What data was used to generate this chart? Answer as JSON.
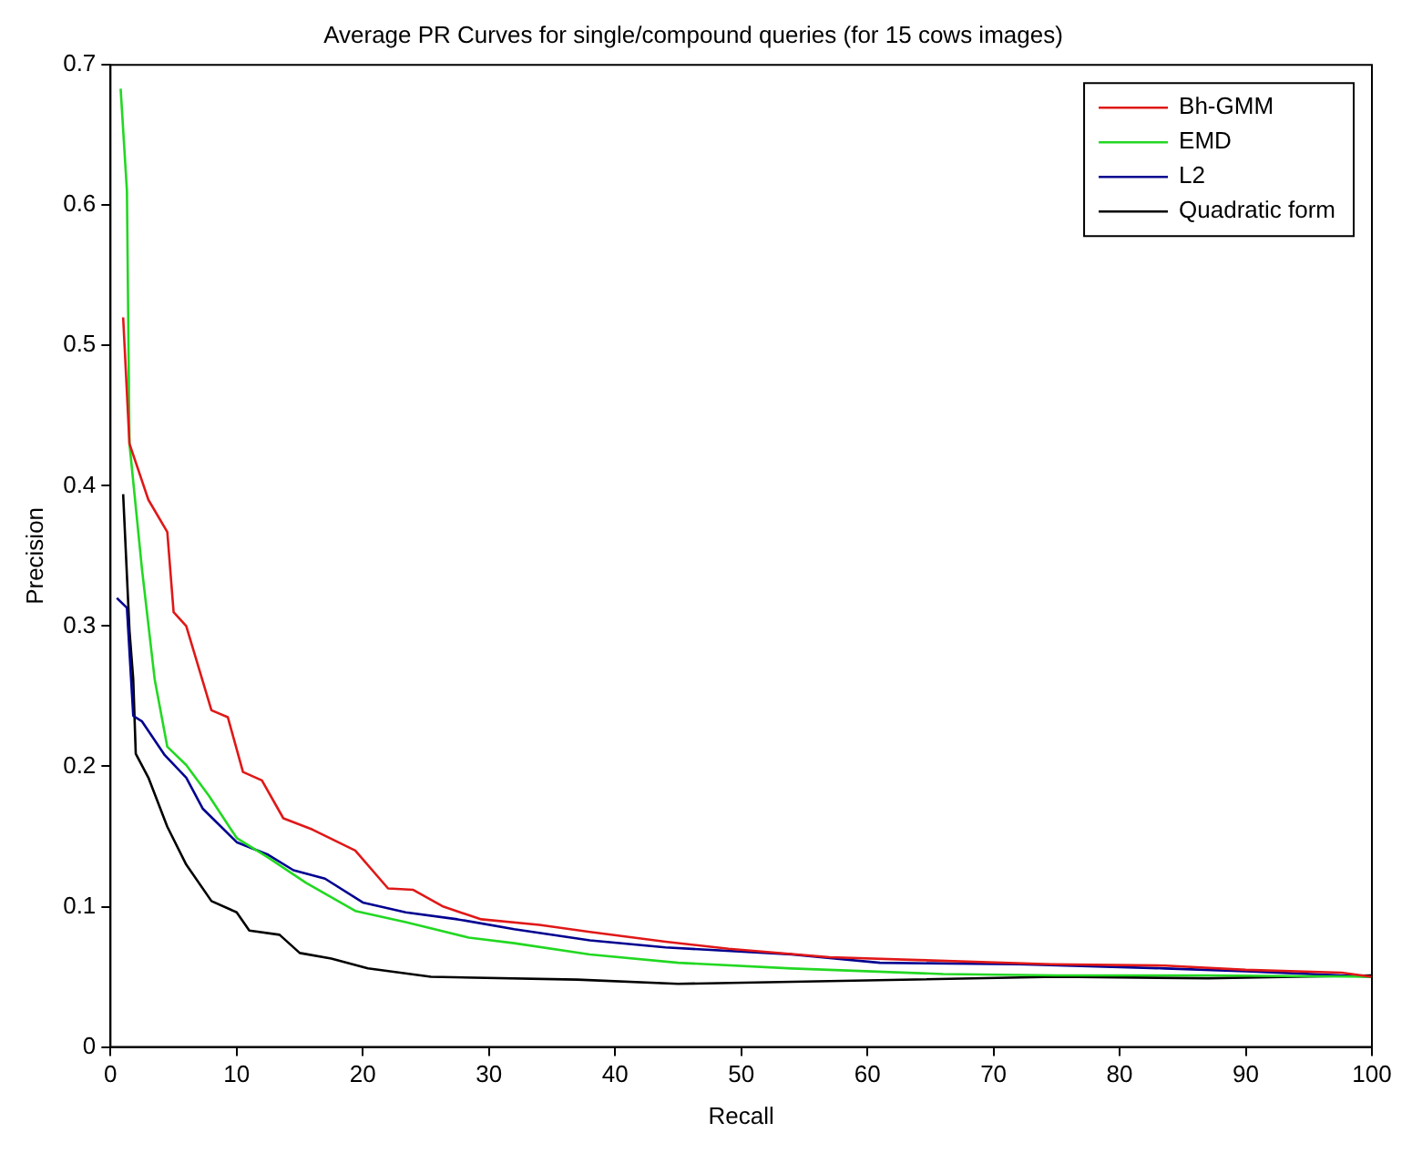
{
  "chart_data": {
    "type": "line",
    "title": "Average PR Curves for single/compound queries (for 15 cows images)",
    "xlabel": "Recall",
    "ylabel": "Precision",
    "xlim": [
      0,
      100
    ],
    "xticks": [
      0,
      10,
      20,
      30,
      40,
      50,
      60,
      70,
      80,
      90,
      100
    ],
    "ylim": [
      0,
      0.7
    ],
    "yticks": [
      0,
      0.1,
      0.2,
      0.3,
      0.4,
      0.5,
      0.6,
      0.7
    ],
    "grid": false,
    "legend": "top right",
    "marker": "none",
    "line_style": "solid",
    "series": [
      {
        "name": "Bh-GMM",
        "color": "#e01818",
        "x": [
          1,
          1.5,
          3,
          4.5,
          5,
          6,
          8,
          9.3,
          10.5,
          12,
          13.7,
          16,
          19.4,
          22,
          24,
          26.4,
          29.4,
          34,
          38,
          44,
          49,
          57,
          64,
          74.6,
          83.6,
          90,
          97.6,
          100
        ],
        "values": [
          0.52,
          0.43,
          0.39,
          0.367,
          0.31,
          0.3,
          0.24,
          0.235,
          0.196,
          0.19,
          0.163,
          0.155,
          0.14,
          0.113,
          0.112,
          0.1,
          0.091,
          0.087,
          0.082,
          0.075,
          0.07,
          0.064,
          0.062,
          0.059,
          0.058,
          0.055,
          0.053,
          0.05
        ]
      },
      {
        "name": "EMD",
        "color": "#22d822",
        "x": [
          0.8,
          1.3,
          1.5,
          2.5,
          3.5,
          4.5,
          6,
          7.8,
          10,
          12.5,
          15.5,
          19.4,
          23.4,
          28.4,
          32,
          38,
          45,
          54,
          66,
          75,
          87,
          100
        ],
        "values": [
          0.683,
          0.61,
          0.43,
          0.34,
          0.262,
          0.214,
          0.201,
          0.179,
          0.149,
          0.135,
          0.117,
          0.097,
          0.089,
          0.078,
          0.074,
          0.066,
          0.06,
          0.056,
          0.052,
          0.051,
          0.051,
          0.05
        ]
      },
      {
        "name": "L2",
        "color": "#000090",
        "x": [
          0.5,
          1.3,
          1.8,
          2.5,
          4.3,
          6,
          7.3,
          10,
          12.5,
          14.5,
          17,
          20,
          23.4,
          27.5,
          32,
          38,
          44,
          54,
          61,
          72,
          83.6,
          90,
          100
        ],
        "values": [
          0.32,
          0.313,
          0.236,
          0.232,
          0.208,
          0.192,
          0.17,
          0.146,
          0.137,
          0.126,
          0.12,
          0.103,
          0.096,
          0.091,
          0.084,
          0.076,
          0.071,
          0.066,
          0.06,
          0.059,
          0.056,
          0.054,
          0.05
        ]
      },
      {
        "name": "Quadratic form",
        "color": "#000000",
        "x": [
          1,
          1.5,
          1.8,
          2,
          3,
          4.5,
          6,
          8,
          10,
          11,
          13.4,
          15,
          17.5,
          20.4,
          25.4,
          37,
          45,
          57,
          75,
          87,
          100
        ],
        "values": [
          0.394,
          0.297,
          0.262,
          0.209,
          0.192,
          0.157,
          0.13,
          0.104,
          0.096,
          0.083,
          0.08,
          0.067,
          0.063,
          0.056,
          0.05,
          0.048,
          0.045,
          0.047,
          0.05,
          0.049,
          0.051
        ]
      }
    ]
  }
}
